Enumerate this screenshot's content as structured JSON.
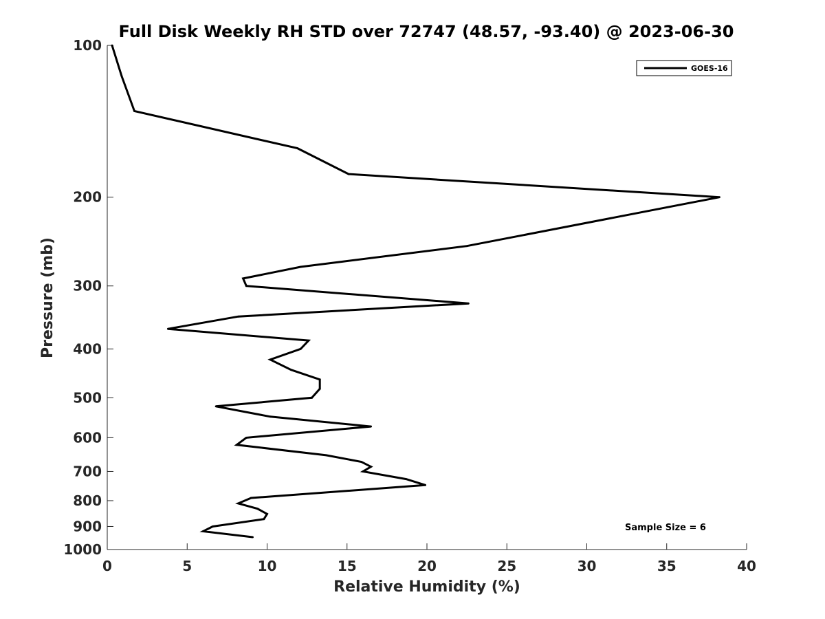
{
  "chart_data": {
    "type": "line",
    "title": "Full Disk Weekly RH STD over 72747 (48.57, -93.40) @ 2023-06-30",
    "xlabel": "Relative Humidity (%)",
    "ylabel": "Pressure (mb)",
    "xlim": [
      0,
      40
    ],
    "ylim": [
      100,
      1000
    ],
    "yscale": "log",
    "ydirection": "reversed",
    "grid": false,
    "legend_position": "top-right",
    "x_ticks": [
      0,
      5,
      10,
      15,
      20,
      25,
      30,
      35,
      40
    ],
    "y_ticks": [
      100,
      200,
      300,
      400,
      500,
      600,
      700,
      800,
      900,
      1000
    ],
    "series": [
      {
        "name": "GOES-16",
        "color": "#000000",
        "points": [
          {
            "p": 100,
            "x": 0.3
          },
          {
            "p": 115,
            "x": 0.9
          },
          {
            "p": 135,
            "x": 1.7
          },
          {
            "p": 160,
            "x": 11.9
          },
          {
            "p": 180,
            "x": 15.1
          },
          {
            "p": 200,
            "x": 38.3
          },
          {
            "p": 250,
            "x": 22.5
          },
          {
            "p": 275,
            "x": 12.1
          },
          {
            "p": 290,
            "x": 8.5
          },
          {
            "p": 300,
            "x": 8.7
          },
          {
            "p": 325,
            "x": 22.6
          },
          {
            "p": 345,
            "x": 8.2
          },
          {
            "p": 365,
            "x": 3.8
          },
          {
            "p": 385,
            "x": 12.6
          },
          {
            "p": 400,
            "x": 12.1
          },
          {
            "p": 420,
            "x": 10.2
          },
          {
            "p": 440,
            "x": 11.5
          },
          {
            "p": 460,
            "x": 13.3
          },
          {
            "p": 480,
            "x": 13.3
          },
          {
            "p": 500,
            "x": 12.8
          },
          {
            "p": 520,
            "x": 6.8
          },
          {
            "p": 545,
            "x": 10.2
          },
          {
            "p": 570,
            "x": 16.5
          },
          {
            "p": 600,
            "x": 8.7
          },
          {
            "p": 620,
            "x": 8.1
          },
          {
            "p": 650,
            "x": 13.7
          },
          {
            "p": 670,
            "x": 15.9
          },
          {
            "p": 685,
            "x": 16.5
          },
          {
            "p": 700,
            "x": 16.0
          },
          {
            "p": 725,
            "x": 18.7
          },
          {
            "p": 745,
            "x": 19.9
          },
          {
            "p": 790,
            "x": 9.0
          },
          {
            "p": 810,
            "x": 8.2
          },
          {
            "p": 830,
            "x": 9.4
          },
          {
            "p": 850,
            "x": 10.0
          },
          {
            "p": 870,
            "x": 9.8
          },
          {
            "p": 900,
            "x": 6.6
          },
          {
            "p": 920,
            "x": 6.0
          },
          {
            "p": 945,
            "x": 9.1
          }
        ]
      }
    ],
    "annotation": "Sample Size = 6"
  }
}
